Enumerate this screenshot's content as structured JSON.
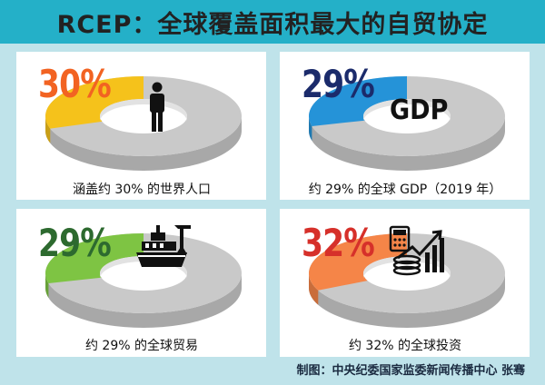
{
  "title": "RCEP：全球覆盖面积最大的自贸协定",
  "credit": "制图：中央纪委国家监委新闻传播中心 张骞",
  "chart_data": [
    {
      "type": "pie",
      "label": "30%",
      "value": 30,
      "caption": "涵盖约 30% 的世界人口",
      "color": "#f5c21b",
      "pct_color": "#f26322",
      "icon": "person-icon"
    },
    {
      "type": "pie",
      "label": "29%",
      "value": 29,
      "caption": "约 29% 的全球 GDP（2019 年）",
      "color": "#2593d8",
      "pct_color": "#1b2b6b",
      "icon": "GDP"
    },
    {
      "type": "pie",
      "label": "29%",
      "value": 29,
      "caption": "约 29% 的全球贸易",
      "color": "#7ec443",
      "pct_color": "#2d6a2f",
      "icon": "ship-icon"
    },
    {
      "type": "pie",
      "label": "32%",
      "value": 32,
      "caption": "约 32% 的全球投资",
      "color": "#f58548",
      "pct_color": "#d6302a",
      "icon": "investment-icon"
    }
  ]
}
